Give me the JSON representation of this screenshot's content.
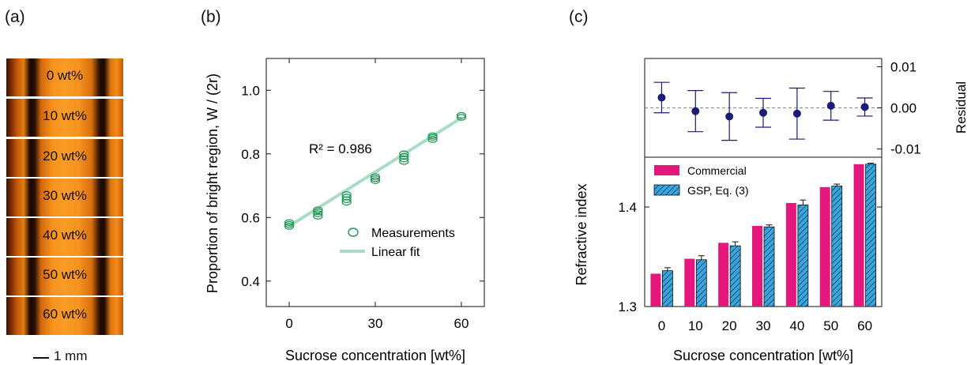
{
  "panel_labels": {
    "a": "(a)",
    "b": "(b)",
    "c": "(c)"
  },
  "panel_a": {
    "strips": [
      "0 wt%",
      "10 wt%",
      "20 wt%",
      "30 wt%",
      "40 wt%",
      "50 wt%",
      "60 wt%"
    ],
    "scalebar": "1 mm"
  },
  "chart_data": [
    {
      "type": "scatter",
      "panel": "(b)",
      "xlabel": "Sucrose concentration [wt%]",
      "ylabel": "Proportion of bright region, W / (2r)",
      "xlim": [
        -8,
        68
      ],
      "ylim": [
        0.32,
        1.1
      ],
      "xticks": [
        "0",
        "30",
        "60"
      ],
      "yticks": [
        "0.4",
        "0.6",
        "0.8",
        "1.0"
      ],
      "annotation": "R² = 0.986",
      "legend_position": "lower-right",
      "series": [
        {
          "name": "Measurements",
          "points": [
            [
              0,
              0.572
            ],
            [
              0,
              0.578
            ],
            [
              0,
              0.584
            ],
            [
              10,
              0.604
            ],
            [
              10,
              0.612
            ],
            [
              10,
              0.618
            ],
            [
              10,
              0.624
            ],
            [
              20,
              0.648
            ],
            [
              20,
              0.656
            ],
            [
              20,
              0.664
            ],
            [
              20,
              0.672
            ],
            [
              30,
              0.716
            ],
            [
              30,
              0.722
            ],
            [
              30,
              0.728
            ],
            [
              40,
              0.776
            ],
            [
              40,
              0.784
            ],
            [
              40,
              0.792
            ],
            [
              40,
              0.8
            ],
            [
              50,
              0.845
            ],
            [
              50,
              0.852
            ],
            [
              50,
              0.857
            ],
            [
              60,
              0.915
            ],
            [
              60,
              0.921
            ]
          ]
        },
        {
          "name": "Linear fit",
          "x": [
            0,
            60
          ],
          "y": [
            0.573,
            0.913
          ]
        }
      ],
      "colors": {
        "measurements": "#1f9a55",
        "fit": "#a9dcc4"
      }
    },
    {
      "type": "scatter",
      "panel": "(c) top",
      "ylabel": "Residual",
      "ylim": [
        -0.012,
        0.012
      ],
      "yticks": [
        "0.01",
        "0.00",
        "-0.01"
      ],
      "categories": [
        "0",
        "10",
        "20",
        "30",
        "40",
        "50",
        "60"
      ],
      "values": [
        0.0025,
        -0.0008,
        -0.0021,
        -0.0012,
        -0.0014,
        0.0005,
        0.0002
      ],
      "err_low": [
        0.0037,
        0.005,
        0.0058,
        0.0035,
        0.0062,
        0.0035,
        0.0022
      ],
      "err_high": [
        0.0037,
        0.005,
        0.0058,
        0.0035,
        0.0062,
        0.0035,
        0.0022
      ],
      "reference_line": 0.0,
      "colors": {
        "points": "#1b1b7a"
      }
    },
    {
      "type": "bar",
      "panel": "(c) bottom",
      "xlabel": "Sucrose concentration [wt%]",
      "ylabel": "Refractive index",
      "categories": [
        "0",
        "10",
        "20",
        "30",
        "40",
        "50",
        "60"
      ],
      "ylim": [
        1.3,
        1.45
      ],
      "yticks": [
        "1.3",
        "1.4"
      ],
      "legend_position": "top-left",
      "series": [
        {
          "name": "Commercial",
          "values": [
            1.333,
            1.348,
            1.364,
            1.381,
            1.404,
            1.42,
            1.443
          ]
        },
        {
          "name": "GSP, Eq. (3)",
          "values": [
            1.336,
            1.347,
            1.361,
            1.38,
            1.402,
            1.421,
            1.443
          ],
          "errors": [
            0.003,
            0.004,
            0.004,
            0.002,
            0.005,
            0.002,
            0.001
          ]
        }
      ],
      "colors": {
        "commercial": "#e5177d",
        "gsp": "#3aa4dc",
        "gsp_hatch": "#0d2a40"
      }
    }
  ]
}
